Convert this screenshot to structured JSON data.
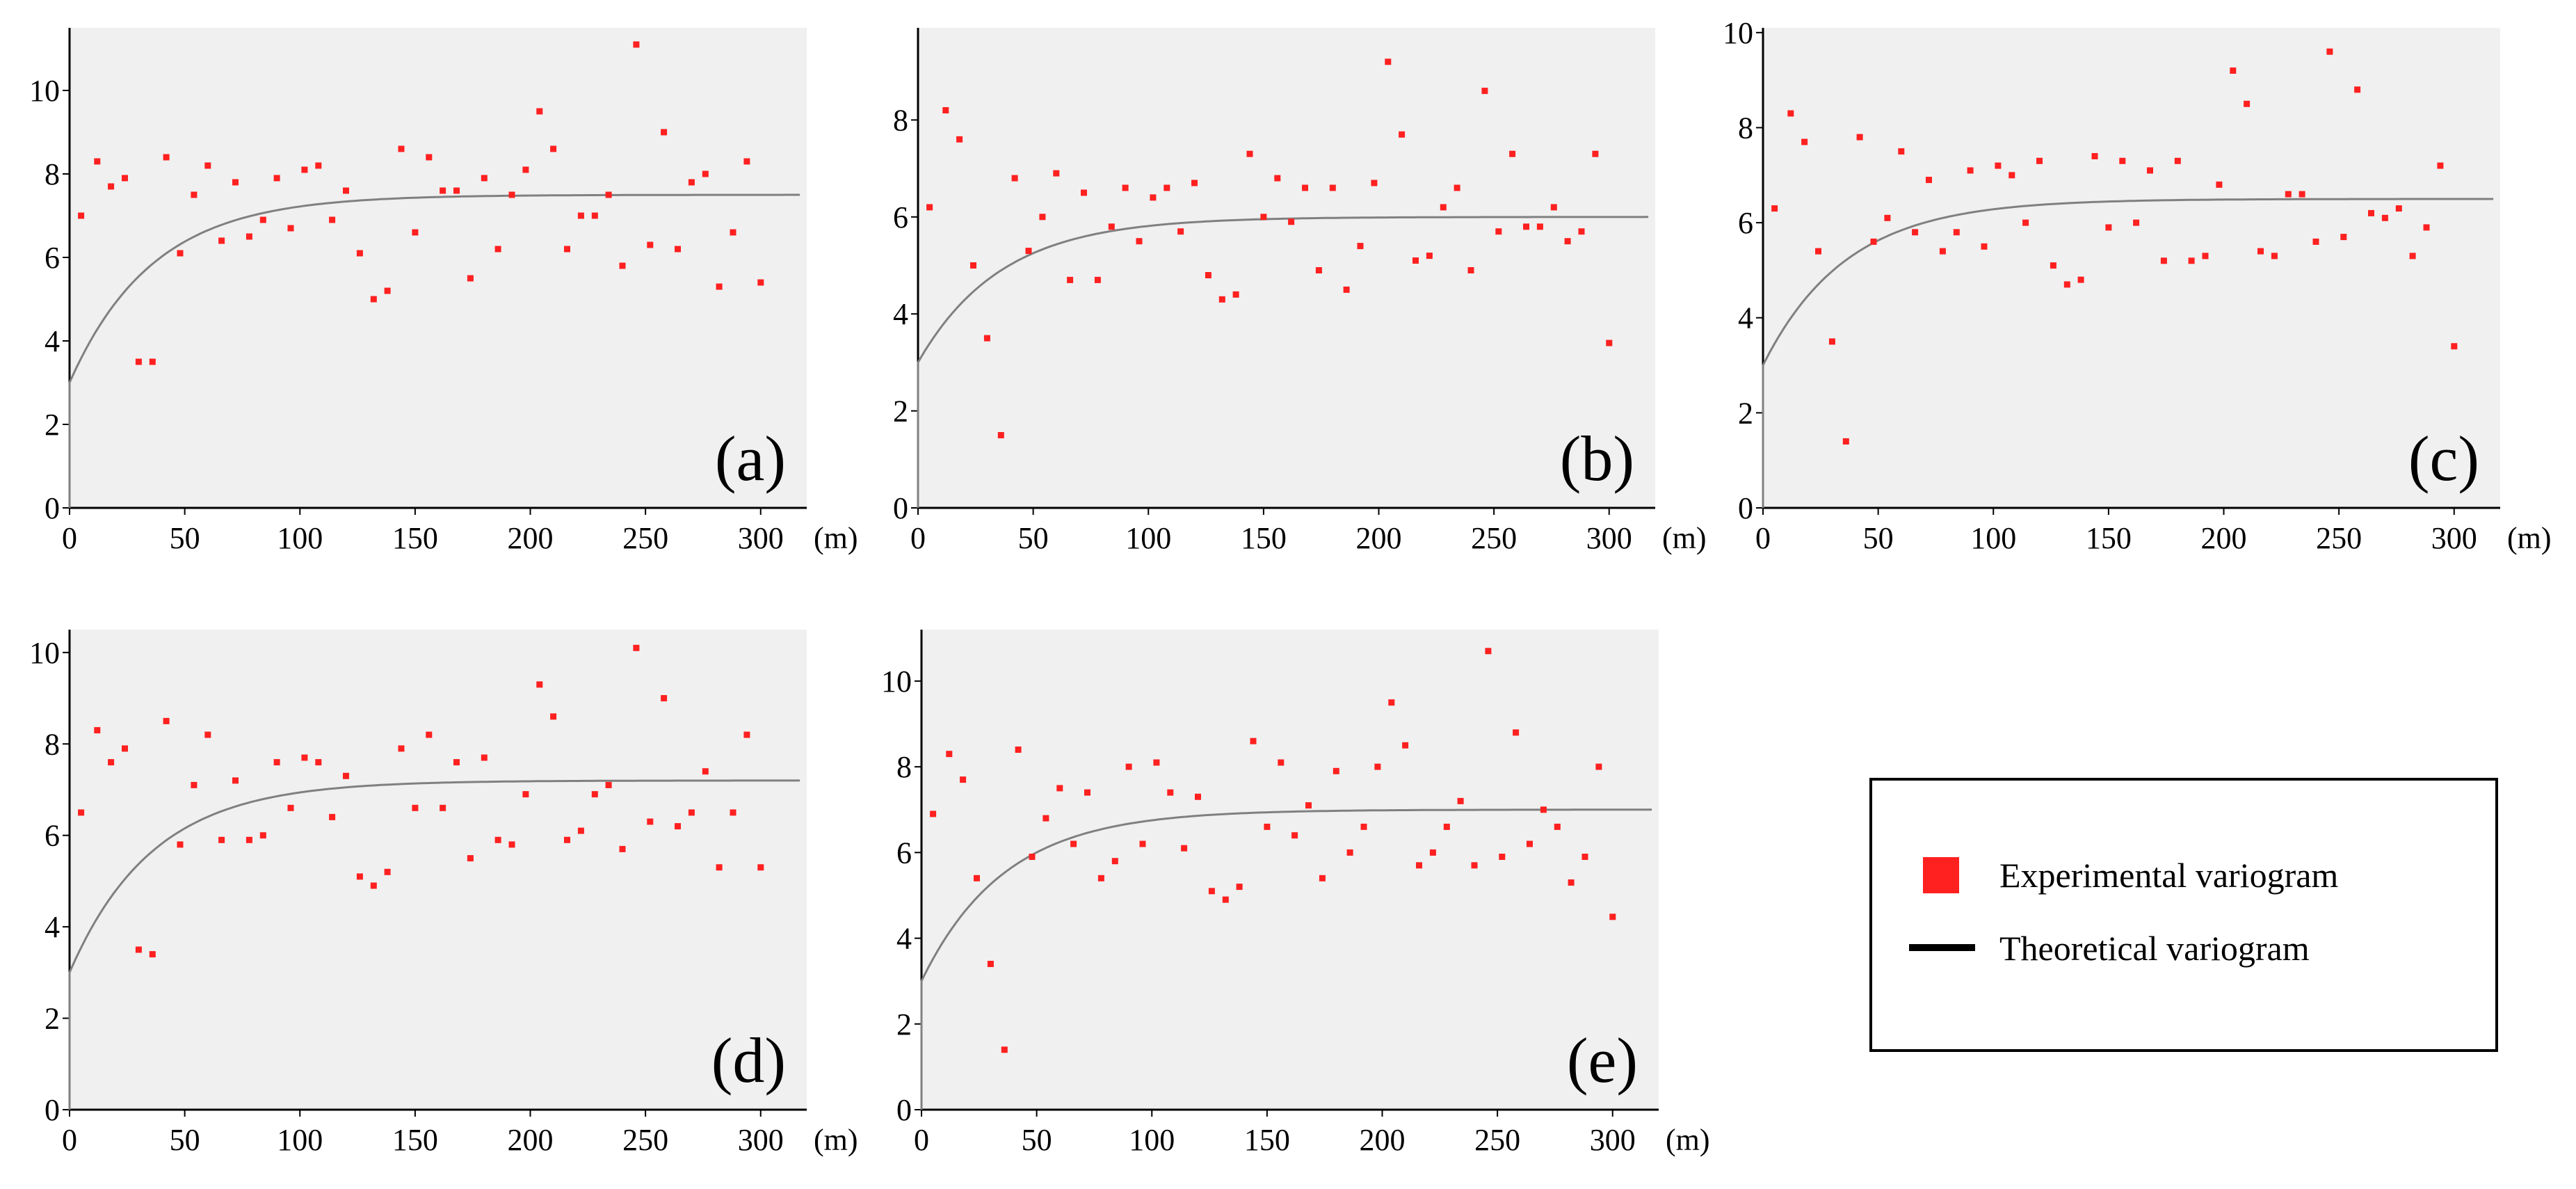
{
  "chart_data": [
    {
      "type": "scatter",
      "panel_label": "(a)",
      "x_unit_label": "(m)",
      "xlim": [
        0,
        320
      ],
      "ylim": [
        0,
        11.5
      ],
      "xticks": [
        0,
        50,
        100,
        150,
        200,
        250,
        300
      ],
      "yticks": [
        0,
        2,
        4,
        6,
        8,
        10
      ],
      "model": {
        "nugget": 3.0,
        "sill": 7.5,
        "range": 36,
        "x_max": 318
      },
      "series": [
        {
          "name": "Experimental variogram",
          "x": [
            5,
            12,
            18,
            24,
            30,
            36,
            42,
            48,
            54,
            60,
            66,
            72,
            78,
            84,
            90,
            96,
            102,
            108,
            114,
            120,
            126,
            132,
            138,
            144,
            150,
            156,
            162,
            168,
            174,
            180,
            186,
            192,
            198,
            204,
            210,
            216,
            222,
            228,
            234,
            240,
            246,
            252,
            258,
            264,
            270,
            276,
            282,
            288,
            294,
            300
          ],
          "y": [
            7.0,
            8.3,
            7.7,
            7.9,
            3.5,
            3.5,
            8.4,
            6.1,
            7.5,
            8.2,
            6.4,
            7.8,
            6.5,
            6.9,
            7.9,
            6.7,
            8.1,
            8.2,
            6.9,
            7.6,
            6.1,
            5.0,
            5.2,
            8.6,
            6.6,
            8.4,
            7.6,
            7.6,
            5.5,
            7.9,
            6.2,
            7.5,
            8.1,
            9.5,
            8.6,
            6.2,
            7.0,
            7.0,
            7.5,
            5.8,
            11.1,
            6.3,
            9.0,
            6.2,
            7.8,
            8.0,
            5.3,
            6.6,
            8.3,
            5.4
          ]
        }
      ]
    },
    {
      "type": "scatter",
      "panel_label": "(b)",
      "x_unit_label": "(m)",
      "xlim": [
        0,
        320
      ],
      "ylim": [
        0,
        9.9
      ],
      "xticks": [
        0,
        50,
        100,
        150,
        200,
        250,
        300
      ],
      "yticks": [
        0,
        2,
        4,
        6,
        8
      ],
      "model": {
        "nugget": 3.0,
        "sill": 6.0,
        "range": 36,
        "x_max": 318
      },
      "series": [
        {
          "name": "Experimental variogram",
          "x": [
            5,
            12,
            18,
            24,
            30,
            36,
            42,
            48,
            54,
            60,
            66,
            72,
            78,
            84,
            90,
            96,
            102,
            108,
            114,
            120,
            126,
            132,
            138,
            144,
            150,
            156,
            162,
            168,
            174,
            180,
            186,
            192,
            198,
            204,
            210,
            216,
            222,
            228,
            234,
            240,
            246,
            252,
            258,
            264,
            270,
            276,
            282,
            288,
            294,
            300
          ],
          "y": [
            6.2,
            8.2,
            7.6,
            5.0,
            3.5,
            1.5,
            6.8,
            5.3,
            6.0,
            6.9,
            4.7,
            6.5,
            4.7,
            5.8,
            6.6,
            5.5,
            6.4,
            6.6,
            5.7,
            6.7,
            4.8,
            4.3,
            4.4,
            7.3,
            6.0,
            6.8,
            5.9,
            6.6,
            4.9,
            6.6,
            4.5,
            5.4,
            6.7,
            9.2,
            7.7,
            5.1,
            5.2,
            6.2,
            6.6,
            4.9,
            8.6,
            5.7,
            7.3,
            5.8,
            5.8,
            6.2,
            5.5,
            5.7,
            7.3,
            3.4
          ]
        }
      ]
    },
    {
      "type": "scatter",
      "panel_label": "(c)",
      "x_unit_label": "(m)",
      "xlim": [
        0,
        320
      ],
      "ylim": [
        0,
        10.1
      ],
      "xticks": [
        0,
        50,
        100,
        150,
        200,
        250,
        300
      ],
      "yticks": [
        0,
        2,
        4,
        6,
        8,
        10
      ],
      "model": {
        "nugget": 3.0,
        "sill": 6.5,
        "range": 36,
        "x_max": 318
      },
      "series": [
        {
          "name": "Experimental variogram",
          "x": [
            5,
            12,
            18,
            24,
            30,
            36,
            42,
            48,
            54,
            60,
            66,
            72,
            78,
            84,
            90,
            96,
            102,
            108,
            114,
            120,
            126,
            132,
            138,
            144,
            150,
            156,
            162,
            168,
            174,
            180,
            186,
            192,
            198,
            204,
            210,
            216,
            222,
            228,
            234,
            240,
            246,
            252,
            258,
            264,
            270,
            276,
            282,
            288,
            294,
            300
          ],
          "y": [
            6.3,
            8.3,
            7.7,
            5.4,
            3.5,
            1.4,
            7.8,
            5.6,
            6.1,
            7.5,
            5.8,
            6.9,
            5.4,
            5.8,
            7.1,
            5.5,
            7.2,
            7.0,
            6.0,
            7.3,
            5.1,
            4.7,
            4.8,
            7.4,
            5.9,
            7.3,
            6.0,
            7.1,
            5.2,
            7.3,
            5.2,
            5.3,
            6.8,
            9.2,
            8.5,
            5.4,
            5.3,
            6.6,
            6.6,
            5.6,
            9.6,
            5.7,
            8.8,
            6.2,
            6.1,
            6.3,
            5.3,
            5.9,
            7.2,
            3.4
          ]
        }
      ]
    },
    {
      "type": "scatter",
      "panel_label": "(d)",
      "x_unit_label": "(m)",
      "xlim": [
        0,
        320
      ],
      "ylim": [
        0,
        10.5
      ],
      "xticks": [
        0,
        50,
        100,
        150,
        200,
        250,
        300
      ],
      "yticks": [
        0,
        2,
        4,
        6,
        8,
        10
      ],
      "model": {
        "nugget": 3.0,
        "sill": 7.2,
        "range": 36,
        "x_max": 318
      },
      "series": [
        {
          "name": "Experimental variogram",
          "x": [
            5,
            12,
            18,
            24,
            30,
            36,
            42,
            48,
            54,
            60,
            66,
            72,
            78,
            84,
            90,
            96,
            102,
            108,
            114,
            120,
            126,
            132,
            138,
            144,
            150,
            156,
            162,
            168,
            174,
            180,
            186,
            192,
            198,
            204,
            210,
            216,
            222,
            228,
            234,
            240,
            246,
            252,
            258,
            264,
            270,
            276,
            282,
            288,
            294,
            300
          ],
          "y": [
            6.5,
            8.3,
            7.6,
            7.9,
            3.5,
            3.4,
            8.5,
            5.8,
            7.1,
            8.2,
            5.9,
            7.2,
            5.9,
            6.0,
            7.6,
            6.6,
            7.7,
            7.6,
            6.4,
            7.3,
            5.1,
            4.9,
            5.2,
            7.9,
            6.6,
            8.2,
            6.6,
            7.6,
            5.5,
            7.7,
            5.9,
            5.8,
            6.9,
            9.3,
            8.6,
            5.9,
            6.1,
            6.9,
            7.1,
            5.7,
            10.1,
            6.3,
            9.0,
            6.2,
            6.5,
            7.4,
            5.3,
            6.5,
            8.2,
            5.3
          ]
        }
      ]
    },
    {
      "type": "scatter",
      "panel_label": "(e)",
      "x_unit_label": "(m)",
      "xlim": [
        0,
        320
      ],
      "ylim": [
        0,
        11.2
      ],
      "xticks": [
        0,
        50,
        100,
        150,
        200,
        250,
        300
      ],
      "yticks": [
        0,
        2,
        4,
        6,
        8,
        10
      ],
      "model": {
        "nugget": 3.0,
        "sill": 7.0,
        "range": 36,
        "x_max": 318
      },
      "series": [
        {
          "name": "Experimental variogram",
          "x": [
            5,
            12,
            18,
            24,
            30,
            36,
            42,
            48,
            54,
            60,
            66,
            72,
            78,
            84,
            90,
            96,
            102,
            108,
            114,
            120,
            126,
            132,
            138,
            144,
            150,
            156,
            162,
            168,
            174,
            180,
            186,
            192,
            198,
            204,
            210,
            216,
            222,
            228,
            234,
            240,
            246,
            252,
            258,
            264,
            270,
            276,
            282,
            288,
            294,
            300
          ],
          "y": [
            6.9,
            8.3,
            7.7,
            5.4,
            3.4,
            1.4,
            8.4,
            5.9,
            6.8,
            7.5,
            6.2,
            7.4,
            5.4,
            5.8,
            8.0,
            6.2,
            8.1,
            7.4,
            6.1,
            7.3,
            5.1,
            4.9,
            5.2,
            8.6,
            6.6,
            8.1,
            6.4,
            7.1,
            5.4,
            7.9,
            6.0,
            6.6,
            8.0,
            9.5,
            8.5,
            5.7,
            6.0,
            6.6,
            7.2,
            5.7,
            10.7,
            5.9,
            8.8,
            6.2,
            7.0,
            6.6,
            5.3,
            5.9,
            8.0,
            4.5
          ]
        }
      ]
    }
  ],
  "legend": {
    "experimental_label": "Experimental variogram",
    "theoretical_label": "Theoretical variogram",
    "experimental_color": "#ff2020",
    "theoretical_color": "#000000"
  },
  "colors": {
    "plot_background": "#f0f0f0",
    "marker": "#ff2020",
    "curve": "#808080",
    "axis": "#000000"
  }
}
